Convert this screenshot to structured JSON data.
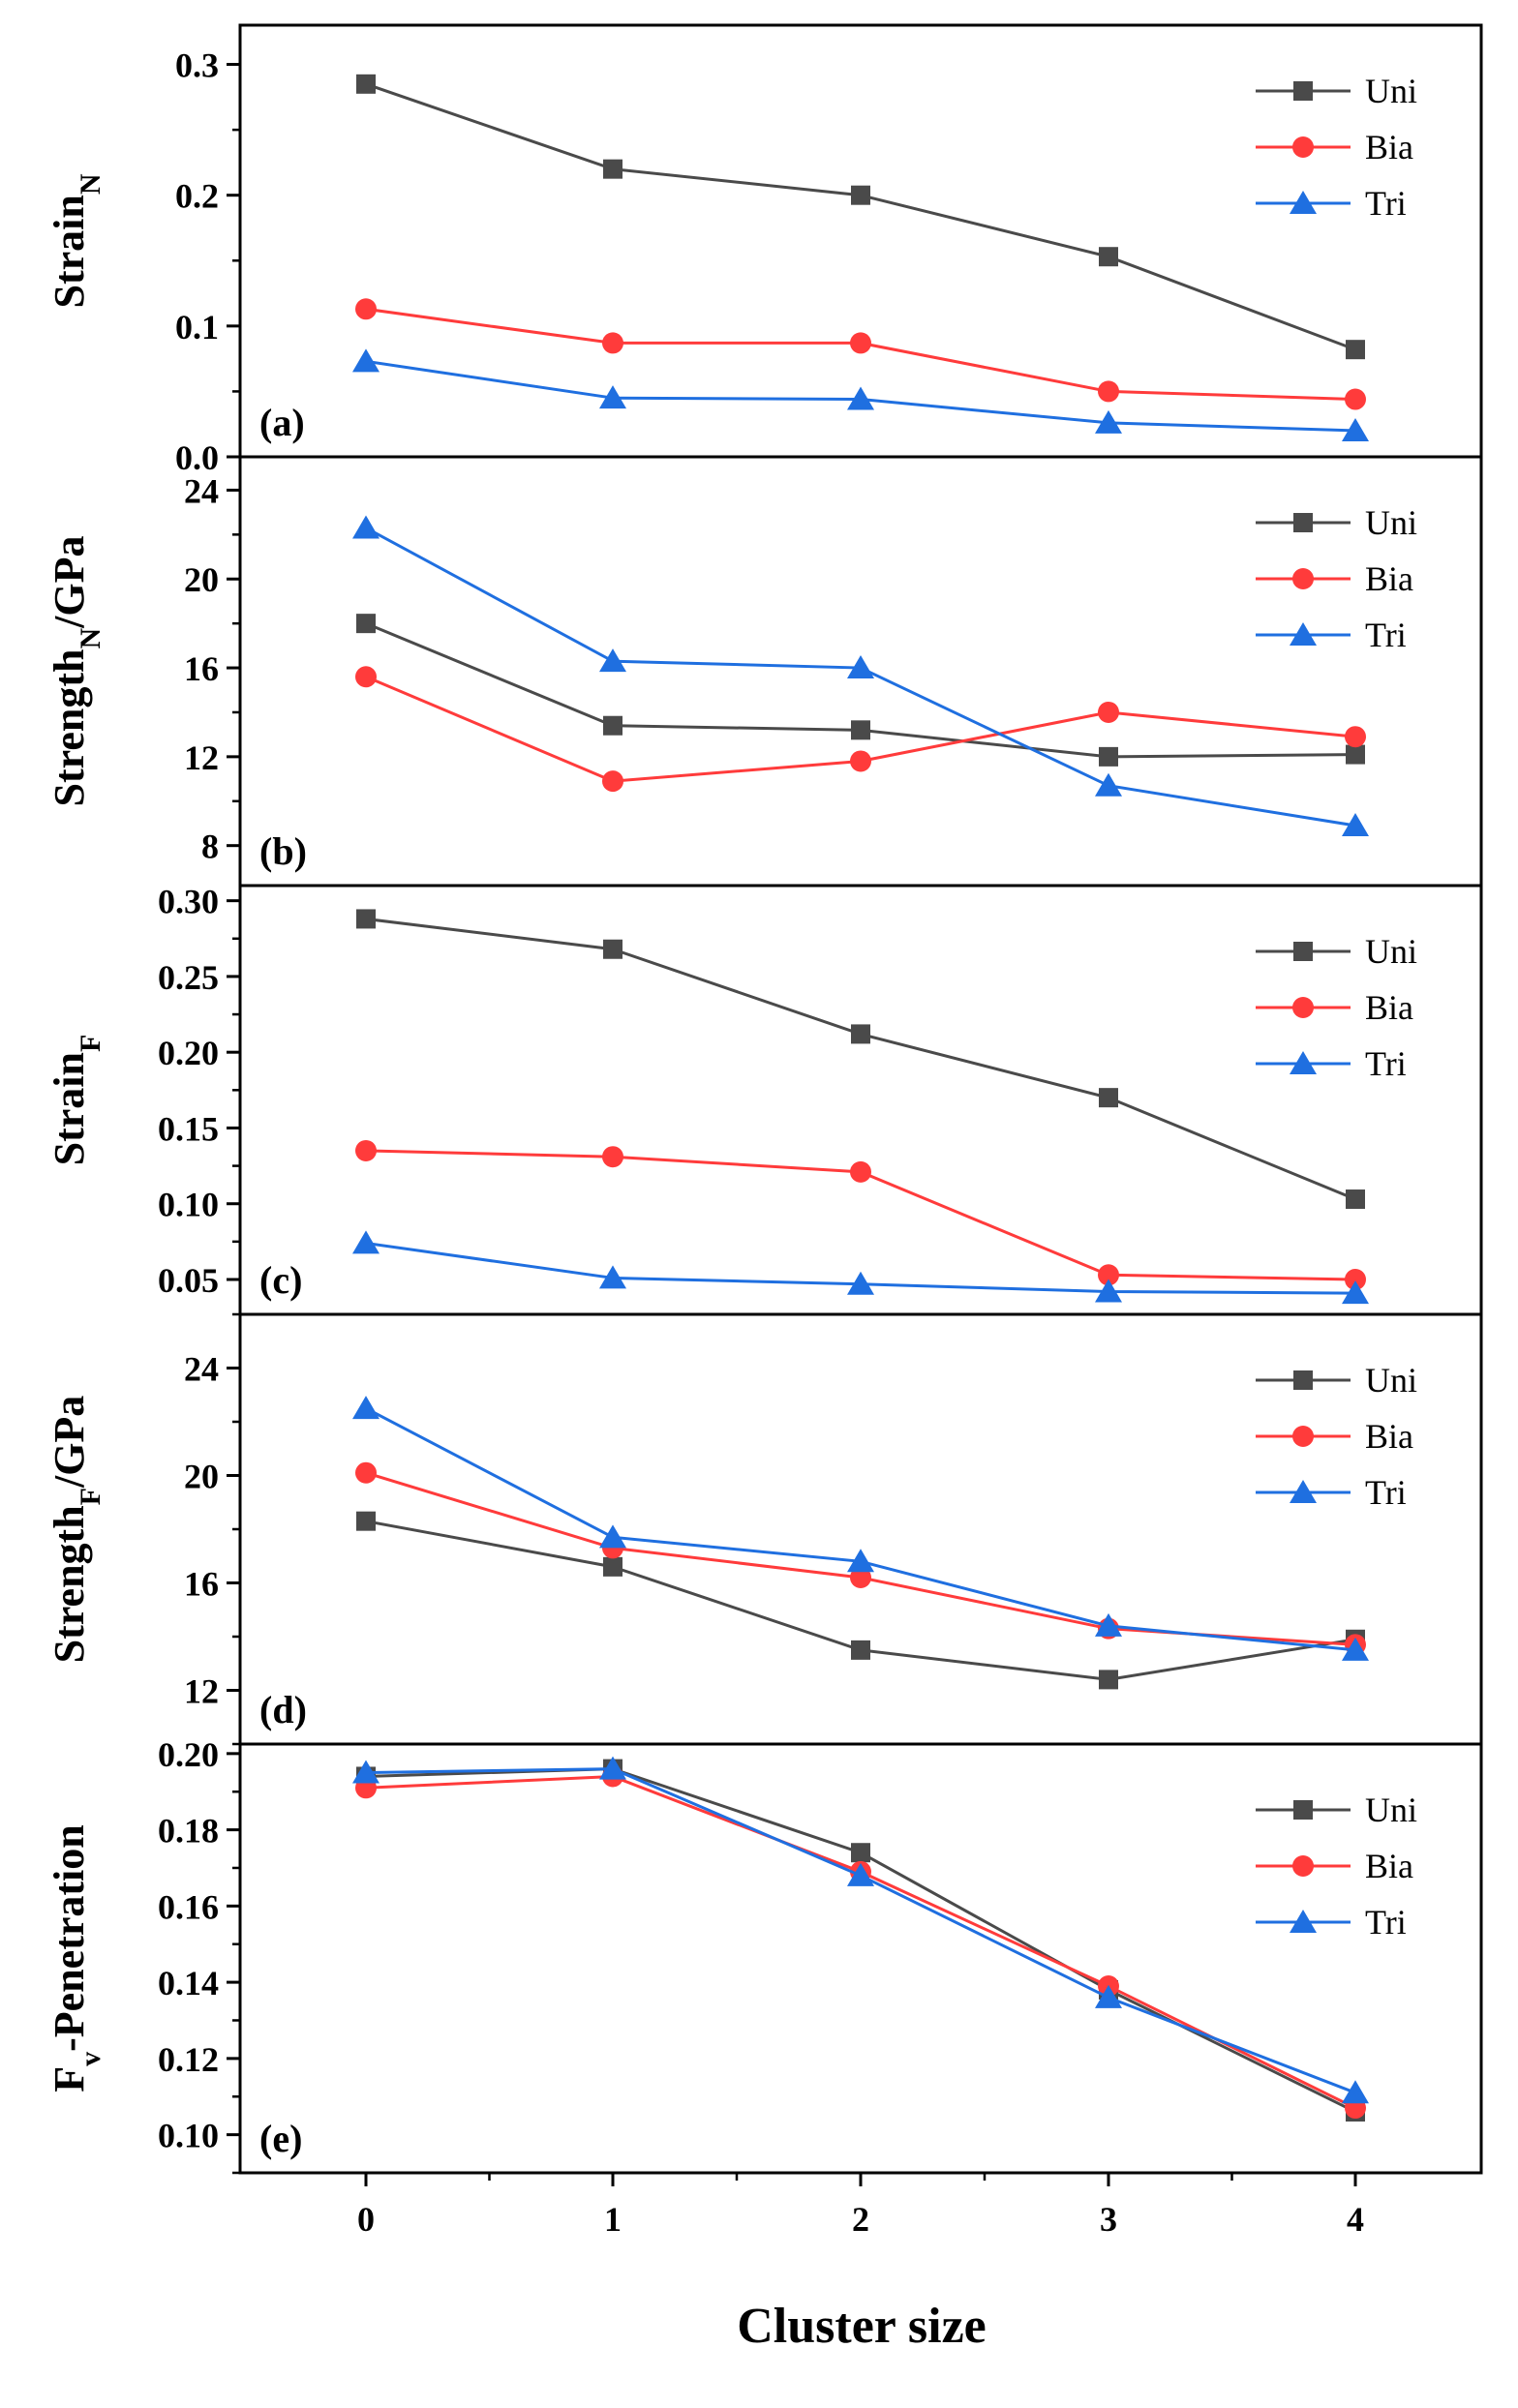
{
  "figure": {
    "xlabel": "Cluster size",
    "x": [
      0,
      1,
      2,
      3,
      4
    ],
    "x_ticks": [
      "0",
      "1",
      "2",
      "3",
      "4"
    ]
  },
  "series_colors": {
    "Uni": "#4a4a4a",
    "Bia": "#ff3b3b",
    "Tri": "#1f6fe0"
  },
  "series_markers": {
    "Uni": "square",
    "Bia": "circle",
    "Tri": "triangle"
  },
  "chart_data": [
    {
      "type": "line",
      "panel": "(a)",
      "ylabel_main": "Strain",
      "ylabel_sub": "N",
      "ylabel_suffix": "",
      "ylim": [
        0,
        0.33
      ],
      "yticks": [
        0.0,
        0.1,
        0.2,
        0.3
      ],
      "ytick_labels": [
        "0.0",
        "0.1",
        "0.2",
        "0.3"
      ],
      "categories": [
        0,
        1,
        2,
        3,
        4
      ],
      "series": [
        {
          "name": "Uni",
          "values": [
            0.285,
            0.22,
            0.2,
            0.153,
            0.082
          ]
        },
        {
          "name": "Bia",
          "values": [
            0.113,
            0.087,
            0.087,
            0.05,
            0.044
          ]
        },
        {
          "name": "Tri",
          "values": [
            0.073,
            0.045,
            0.044,
            0.026,
            0.02
          ]
        }
      ]
    },
    {
      "type": "line",
      "panel": "(b)",
      "ylabel_main": "Strength",
      "ylabel_sub": "N",
      "ylabel_suffix": "/GPa",
      "ylim": [
        6.2,
        25.5
      ],
      "yticks": [
        8,
        12,
        16,
        20,
        24
      ],
      "ytick_labels": [
        "8",
        "12",
        "16",
        "20",
        "24"
      ],
      "categories": [
        0,
        1,
        2,
        3,
        4
      ],
      "series": [
        {
          "name": "Uni",
          "values": [
            18.0,
            13.4,
            13.2,
            12.0,
            12.1
          ]
        },
        {
          "name": "Bia",
          "values": [
            15.6,
            10.9,
            11.8,
            14.0,
            12.9
          ]
        },
        {
          "name": "Tri",
          "values": [
            22.3,
            16.3,
            16.0,
            10.7,
            8.9
          ]
        }
      ]
    },
    {
      "type": "line",
      "panel": "(c)",
      "ylabel_main": "Strain",
      "ylabel_sub": "F",
      "ylabel_suffix": "",
      "ylim": [
        0.027,
        0.31
      ],
      "yticks": [
        0.05,
        0.1,
        0.15,
        0.2,
        0.25,
        0.3
      ],
      "ytick_labels": [
        "0.05",
        "0.10",
        "0.15",
        "0.20",
        "0.25",
        "0.30"
      ],
      "categories": [
        0,
        1,
        2,
        3,
        4
      ],
      "series": [
        {
          "name": "Uni",
          "values": [
            0.288,
            0.268,
            0.212,
            0.17,
            0.103
          ]
        },
        {
          "name": "Bia",
          "values": [
            0.135,
            0.131,
            0.121,
            0.053,
            0.05
          ]
        },
        {
          "name": "Tri",
          "values": [
            0.074,
            0.051,
            0.047,
            0.042,
            0.041
          ]
        }
      ]
    },
    {
      "type": "line",
      "panel": "(d)",
      "ylabel_main": "Strength",
      "ylabel_sub": "F",
      "ylabel_suffix": "/GPa",
      "ylim": [
        10.0,
        26.0
      ],
      "yticks": [
        12,
        16,
        20,
        24
      ],
      "ytick_labels": [
        "12",
        "16",
        "20",
        "24"
      ],
      "categories": [
        0,
        1,
        2,
        3,
        4
      ],
      "series": [
        {
          "name": "Uni",
          "values": [
            18.3,
            16.6,
            13.5,
            12.4,
            13.9
          ]
        },
        {
          "name": "Bia",
          "values": [
            20.1,
            17.3,
            16.2,
            14.3,
            13.7
          ]
        },
        {
          "name": "Tri",
          "values": [
            22.5,
            17.7,
            16.8,
            14.4,
            13.5
          ]
        }
      ]
    },
    {
      "type": "line",
      "panel": "(e)",
      "ylabel_main": "F",
      "ylabel_sub": "v",
      "ylabel_suffix": "-Penetration",
      "ylim": [
        0.09,
        0.2025
      ],
      "yticks": [
        0.1,
        0.12,
        0.14,
        0.16,
        0.18,
        0.2
      ],
      "ytick_labels": [
        "0.10",
        "0.12",
        "0.14",
        "0.16",
        "0.18",
        "0.20"
      ],
      "categories": [
        0,
        1,
        2,
        3,
        4
      ],
      "series": [
        {
          "name": "Uni",
          "values": [
            0.194,
            0.196,
            0.174,
            0.138,
            0.106
          ]
        },
        {
          "name": "Bia",
          "values": [
            0.191,
            0.194,
            0.169,
            0.139,
            0.107
          ]
        },
        {
          "name": "Tri",
          "values": [
            0.195,
            0.196,
            0.168,
            0.136,
            0.111
          ]
        }
      ]
    }
  ]
}
